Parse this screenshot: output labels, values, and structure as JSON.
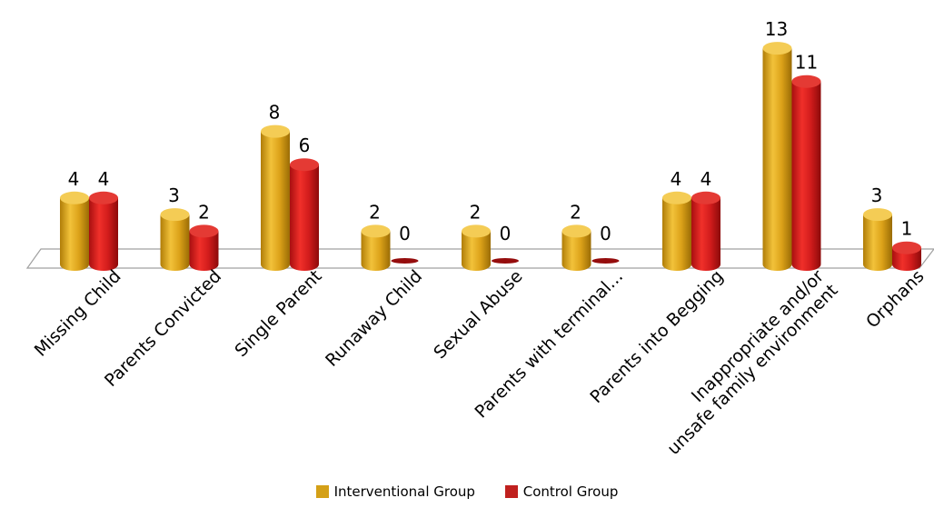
{
  "chart_data": {
    "type": "bar",
    "categories": [
      "Missing Child",
      "Parents Convicted",
      "Single Parent",
      "Runaway Child",
      "Sexual Abuse",
      "Parents with terminal...",
      "Parents into Begging",
      "Inappropriate and/or unsafe family environment",
      "Orphans"
    ],
    "category_lines": [
      [
        "Missing Child"
      ],
      [
        "Parents Convicted"
      ],
      [
        "Single Parent"
      ],
      [
        "Runaway Child"
      ],
      [
        "Sexual Abuse"
      ],
      [
        "Parents with terminal..."
      ],
      [
        "Parents into Begging"
      ],
      [
        "Inappropriate and/or",
        "unsafe family environment"
      ],
      [
        "Orphans"
      ]
    ],
    "series": [
      {
        "name": "Interventional Group",
        "values": [
          4,
          3,
          8,
          2,
          2,
          2,
          4,
          13,
          3
        ]
      },
      {
        "name": "Control Group",
        "values": [
          4,
          2,
          6,
          0,
          0,
          0,
          4,
          11,
          1
        ]
      }
    ],
    "title": "",
    "xlabel": "",
    "ylabel": "",
    "ylim": [
      0,
      13
    ],
    "grid": false,
    "legend_position": "bottom",
    "colors": {
      "Interventional Group": "#D4A017",
      "Control Group": "#D42020"
    }
  },
  "legend": {
    "interventional_label": "Interventional Group",
    "control_label": "Control Group"
  }
}
